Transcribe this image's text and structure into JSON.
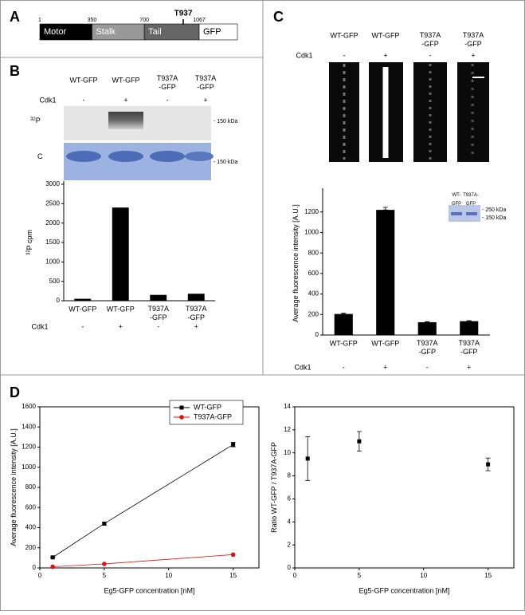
{
  "panel_a": {
    "label": "A",
    "domains": [
      "Motor",
      "Stalk",
      "Tail",
      "GFP"
    ],
    "boundaries": [
      1,
      350,
      700,
      1067
    ],
    "site": "T937"
  },
  "panel_b": {
    "label": "B",
    "lanes": [
      "WT-GFP",
      "WT-GFP",
      "T937A\n-GFP",
      "T937A\n-GFP"
    ],
    "treatment": "Cdk1",
    "signs": [
      "-",
      "+",
      "-",
      "+"
    ],
    "blot_rows": [
      {
        "mass": "32",
        "element": "P"
      },
      {
        "mass": "",
        "element": "C"
      }
    ],
    "markers": [
      "- 150 kDa",
      "- 150 kDa"
    ]
  },
  "panel_c": {
    "label": "C",
    "lanes": [
      "WT-GFP",
      "WT-GFP",
      "T937A\n-GFP",
      "T937A\n-GFP"
    ],
    "treatment": "Cdk1",
    "signs": [
      "-",
      "+",
      "-",
      "+"
    ]
  },
  "panel_d": {
    "label": "D"
  },
  "chart_data": [
    {
      "type": "bar",
      "ylabel": {
        "mass": "32",
        "text": "P cpm"
      },
      "categories": [
        "WT-GFP",
        "WT-GFP",
        "T937A\n-GFP",
        "T937A\n-GFP"
      ],
      "values": [
        50,
        2400,
        150,
        180
      ],
      "color": "#000000",
      "ylim": [
        0,
        3000
      ],
      "yticks": [
        0,
        500,
        1000,
        1500,
        2000,
        2500,
        3000
      ],
      "treatment": "Cdk1",
      "signs": [
        "-",
        "+",
        "-",
        "+"
      ]
    },
    {
      "type": "bar",
      "ylabel": {
        "mass": "",
        "text": "Average fluorescence intensity [A.U.]"
      },
      "categories": [
        "WT-GFP",
        "WT-GFP",
        "T937A\n-GFP",
        "T937A\n-GFP"
      ],
      "values": [
        205,
        1220,
        125,
        135
      ],
      "errors": [
        8,
        25,
        5,
        5
      ],
      "color": "#000000",
      "ylim": [
        0,
        1400
      ],
      "yticks": [
        0,
        200,
        400,
        600,
        800,
        1000,
        1200
      ],
      "treatment": "Cdk1",
      "signs": [
        "-",
        "+",
        "-",
        "+"
      ],
      "inset": {
        "lanes": [
          "WT-\nGFP",
          "T937A-\nGFP"
        ],
        "markers": [
          "- 250 kDa",
          "- 150 kDa"
        ]
      }
    },
    {
      "type": "line",
      "x": [
        1,
        5,
        15
      ],
      "xlabel": "Eg5-GFP concentration [nM]",
      "ylabel": {
        "mass": "",
        "text": "Average fluorescence intensity [A.U.]"
      },
      "series": [
        {
          "name": "WT-GFP",
          "color": "#000000",
          "marker": "square",
          "values": [
            105,
            440,
            1225
          ],
          "errors": [
            5,
            12,
            22
          ]
        },
        {
          "name": "T937A-GFP",
          "color": "#e01010",
          "marker": "circle",
          "values": [
            12,
            40,
            132
          ]
        }
      ],
      "xlim": [
        0,
        17
      ],
      "xticks": [
        0,
        5,
        10,
        15
      ],
      "ylim": [
        0,
        1600
      ],
      "yticks": [
        0,
        200,
        400,
        600,
        800,
        1000,
        1200,
        1400,
        1600
      ],
      "legend": "top-right"
    },
    {
      "type": "scatter",
      "x": [
        1,
        5,
        15
      ],
      "xlabel": "Eg5-GFP concentration [nM]",
      "ylabel": {
        "mass": "",
        "text": "Ratio WT-GFP / T937A-GFP"
      },
      "values": [
        9.5,
        11,
        9
      ],
      "errors": [
        1.9,
        0.85,
        0.55
      ],
      "color": "#000000",
      "xlim": [
        0,
        17
      ],
      "xticks": [
        0,
        5,
        10,
        15
      ],
      "ylim": [
        0,
        14
      ],
      "yticks": [
        0,
        2,
        4,
        6,
        8,
        10,
        12,
        14
      ]
    }
  ]
}
